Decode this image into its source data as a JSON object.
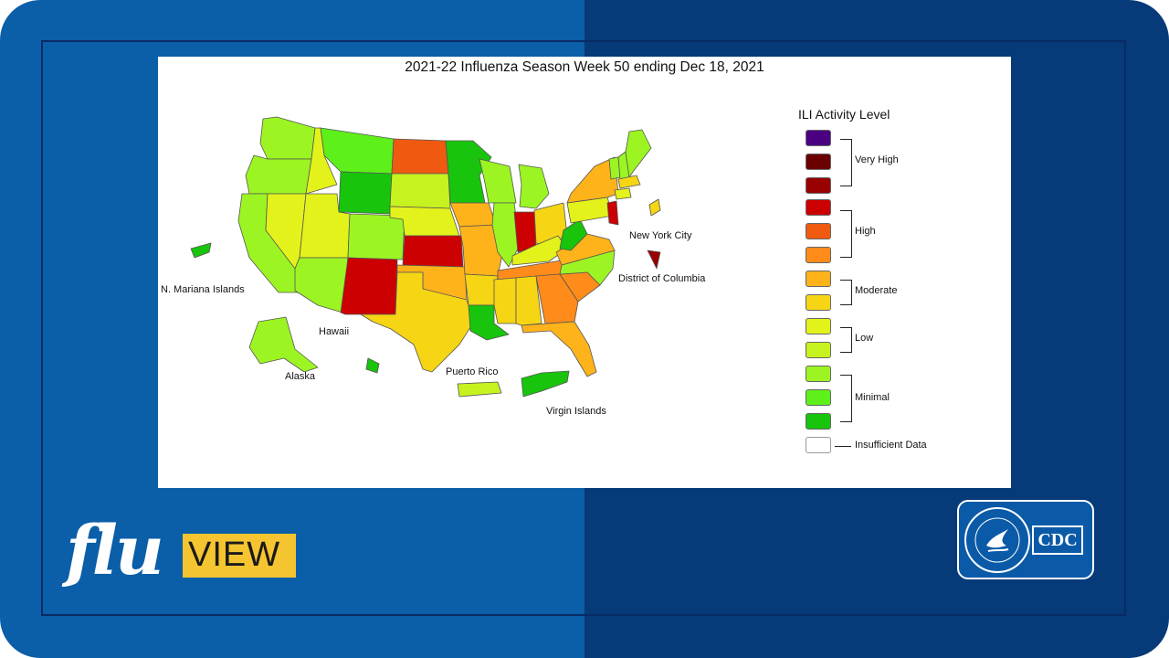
{
  "title": "2021-22 Influenza Season Week 50 ending Dec 18, 2021",
  "legend": {
    "title": "ILI Activity Level",
    "swatches": [
      "#4b0082",
      "#6b0000",
      "#990000",
      "#cc0000",
      "#f05a10",
      "#ff8c1a",
      "#ffb31a",
      "#f5d514",
      "#e3f21a",
      "#c6f21f",
      "#9cf523",
      "#5ef01a",
      "#18c40c",
      "#ffffff"
    ],
    "groups": [
      {
        "label": "Very High"
      },
      {
        "label": "High"
      },
      {
        "label": "Moderate"
      },
      {
        "label": "Low"
      },
      {
        "label": "Minimal"
      },
      {
        "label": "Insufficient Data"
      }
    ]
  },
  "labels": {
    "nmi": "N. Mariana Islands",
    "hawaii": "Hawaii",
    "alaska": "Alaska",
    "pr": "Puerto Rico",
    "vi": "Virgin Islands",
    "nyc": "New York City",
    "dc": "District of Columbia"
  },
  "levels": {
    "WA": "#9cf523",
    "OR": "#9cf523",
    "CA": "#9cf523",
    "NV": "#e3f21a",
    "ID": "#e3f21a",
    "MT": "#5ef01a",
    "WY": "#18c40c",
    "UT": "#e3f21a",
    "AZ": "#9cf523",
    "CO": "#9cf523",
    "NM": "#cc0000",
    "ND": "#f05a10",
    "SD": "#c6f21f",
    "NE": "#e3f21a",
    "KS": "#cc0000",
    "OK": "#ffb31a",
    "TX": "#f5d514",
    "MN": "#18c40c",
    "IA": "#ffb31a",
    "MO": "#ffb31a",
    "AR": "#f5d514",
    "LA": "#18c40c",
    "WI": "#9cf523",
    "IL": "#9cf523",
    "IN": "#cc0000",
    "MI": "#9cf523",
    "OH": "#f5d514",
    "KY": "#e3f21a",
    "TN": "#ff8c1a",
    "MS": "#f5d514",
    "AL": "#f5d514",
    "GA": "#ff8c1a",
    "FL": "#ffb31a",
    "SC": "#ff8c1a",
    "NC": "#9cf523",
    "VA": "#ffb31a",
    "WV": "#18c40c",
    "PA": "#e3f21a",
    "NY": "#ffb31a",
    "NJ": "#cc0000",
    "ME": "#9cf523",
    "NH": "#9cf523",
    "VT": "#9cf523",
    "MA": "#f5d514",
    "NE_small": "#e3f21a",
    "AK": "#9cf523",
    "HI": "#18c40c",
    "PR": "#c6f21f",
    "VI": "#18c40c",
    "NMI": "#18c40c",
    "NYC": "#f5d514",
    "DC": "#990000"
  },
  "logo": {
    "flu": "flu",
    "view": "VIEW",
    "cdc": "CDC"
  }
}
